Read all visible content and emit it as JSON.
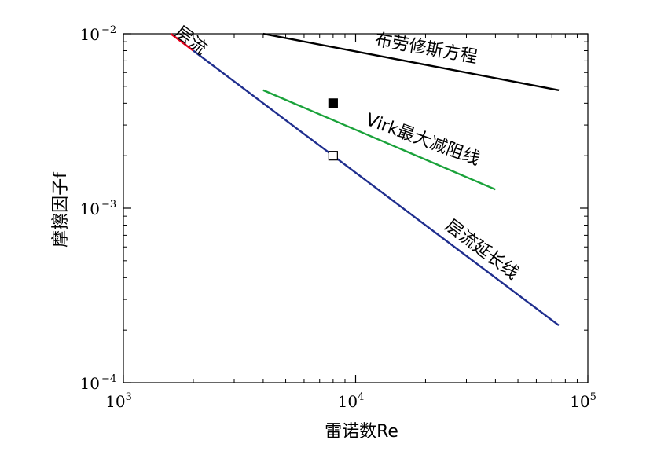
{
  "chart_data": {
    "type": "line",
    "xlabel": "雷诺数Re",
    "ylabel": "摩擦因子f",
    "xscale": "log",
    "yscale": "log",
    "xlim": [
      1000,
      100000
    ],
    "ylim": [
      0.0001,
      0.01
    ],
    "x_ticks": [
      {
        "value": 1000,
        "base": "10",
        "exp": "3"
      },
      {
        "value": 10000,
        "base": "10",
        "exp": "4"
      },
      {
        "value": 100000,
        "base": "10",
        "exp": "5"
      }
    ],
    "y_ticks": [
      {
        "value": 0.0001,
        "base": "10",
        "exp": "−4"
      },
      {
        "value": 0.001,
        "base": "10",
        "exp": "−3"
      },
      {
        "value": 0.01,
        "base": "10",
        "exp": "−2"
      }
    ],
    "series": [
      {
        "name": "层流",
        "color": "#e8001c",
        "x": [
          1600,
          2000
        ],
        "y": [
          0.01,
          0.008
        ]
      },
      {
        "name": "层流延长线",
        "color": "#1f2e8e",
        "x": [
          2000,
          75000
        ],
        "y": [
          0.008,
          0.000213
        ]
      },
      {
        "name": "Virk最大减阻线",
        "color": "#1aa23a",
        "x": [
          4000,
          40000
        ],
        "y": [
          0.00475,
          0.00128
        ]
      },
      {
        "name": "布劳修斯方程",
        "color": "#000000",
        "x": [
          4000,
          75000
        ],
        "y": [
          0.01,
          0.00475
        ]
      }
    ],
    "points": [
      {
        "x": 8000,
        "y": 0.004,
        "marker": "filled-square",
        "color": "#000000"
      },
      {
        "x": 8000,
        "y": 0.002,
        "marker": "open-square",
        "color": "#000000"
      }
    ],
    "annotations": [
      {
        "text": "层流",
        "series": "层流"
      },
      {
        "text": "布劳修斯方程",
        "series": "布劳修斯方程"
      },
      {
        "text": "Virk最大减阻线",
        "series": "Virk最大减阻线"
      },
      {
        "text": "层流延长线",
        "series": "层流延长线"
      }
    ]
  }
}
